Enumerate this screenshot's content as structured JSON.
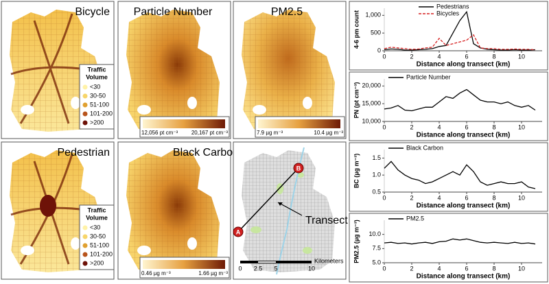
{
  "maps": {
    "panels": [
      {
        "title": "Bicycle"
      },
      {
        "title": "Particle Number",
        "scale": [
          "12,056 pt cm⁻³",
          "20,167 pt cm⁻³"
        ]
      },
      {
        "title": "PM2.5",
        "scale": [
          "7.9 µg m⁻³",
          "10.4 µg m⁻³"
        ]
      },
      {
        "title": "Pedestrian"
      },
      {
        "title": "Black Carbon",
        "scale": [
          "0.46 µg m⁻³",
          "1.66 µg m⁻³"
        ]
      }
    ],
    "traffic_legend": {
      "title": [
        "Traffic",
        "Volume"
      ],
      "items": [
        "<30",
        "30-50",
        "51-100",
        "101-200",
        ">200"
      ],
      "colors": [
        "#fff2a8",
        "#f7d56a",
        "#e0a030",
        "#b8541c",
        "#6e1208"
      ]
    },
    "transect": {
      "start": "A",
      "end": "B",
      "label": "Transect",
      "scale_title": "Kilometers",
      "scale_ticks": [
        "0",
        "2.5",
        "5",
        "10"
      ]
    }
  },
  "chart_data": [
    {
      "type": "line",
      "ylabel": "4-6 pm count",
      "xlabel": "Distance along transect (km)",
      "x": [
        0,
        0.5,
        1,
        1.5,
        2,
        2.5,
        3,
        3.5,
        4,
        4.5,
        5,
        5.5,
        6,
        6.5,
        7,
        7.5,
        8,
        8.5,
        9,
        9.5,
        10,
        10.5,
        11
      ],
      "xlim": [
        0,
        11.5
      ],
      "xticks": [
        0,
        2,
        4,
        6,
        8,
        10
      ],
      "ylim": [
        0,
        1200
      ],
      "yticks": [
        0,
        500,
        {
          "value": 1000,
          "label": "1,000"
        }
      ],
      "legend": "upper left",
      "series": [
        {
          "name": "Pedestrians",
          "color": "#000000",
          "dash": false,
          "values": [
            30,
            50,
            40,
            20,
            20,
            30,
            40,
            60,
            120,
            150,
            500,
            850,
            1100,
            200,
            80,
            40,
            30,
            20,
            20,
            30,
            20,
            20,
            30
          ]
        },
        {
          "name": "Bicycles",
          "color": "#d62020",
          "dash": true,
          "values": [
            60,
            100,
            80,
            60,
            40,
            50,
            80,
            100,
            350,
            150,
            200,
            250,
            300,
            450,
            80,
            60,
            60,
            40,
            40,
            50,
            40,
            40,
            30
          ]
        }
      ]
    },
    {
      "type": "line",
      "ylabel": "PN (pt cm⁻³)",
      "xlabel": "Distance along transect (km)",
      "x": [
        0,
        0.5,
        1,
        1.5,
        2,
        2.5,
        3,
        3.5,
        4,
        4.5,
        5,
        5.5,
        6,
        6.5,
        7,
        7.5,
        8,
        8.5,
        9,
        9.5,
        10,
        10.5,
        11
      ],
      "xlim": [
        0,
        11.5
      ],
      "xticks": [
        0,
        2,
        4,
        6,
        8,
        10
      ],
      "ylim": [
        10000,
        22000
      ],
      "yticks": [
        {
          "value": 10000,
          "label": "10,000"
        },
        {
          "value": 15000,
          "label": "15,000"
        },
        {
          "value": 20000,
          "label": "20,000"
        }
      ],
      "legend": "upper left",
      "series": [
        {
          "name": "Particle Number",
          "color": "#000000",
          "dash": false,
          "values": [
            13500,
            13800,
            14500,
            13200,
            13000,
            13500,
            14000,
            14000,
            15500,
            17000,
            16500,
            18000,
            19000,
            17500,
            16000,
            15500,
            15500,
            15000,
            15500,
            14500,
            14000,
            14500,
            13200
          ]
        }
      ]
    },
    {
      "type": "line",
      "ylabel": "BC (µg m⁻³)",
      "xlabel": "Distance along transect (km)",
      "x": [
        0,
        0.5,
        1,
        1.5,
        2,
        2.5,
        3,
        3.5,
        4,
        4.5,
        5,
        5.5,
        6,
        6.5,
        7,
        7.5,
        8,
        8.5,
        9,
        9.5,
        10,
        10.5,
        11
      ],
      "xlim": [
        0,
        11.5
      ],
      "xticks": [
        0,
        2,
        4,
        6,
        8,
        10
      ],
      "ylim": [
        0.5,
        1.75
      ],
      "yticks": [
        0.5,
        {
          "value": 1,
          "label": "1.0"
        },
        1.5
      ],
      "legend": "upper left",
      "series": [
        {
          "name": "Black Carbon",
          "color": "#000000",
          "dash": false,
          "values": [
            1.2,
            1.4,
            1.15,
            1.0,
            0.9,
            0.85,
            0.75,
            0.8,
            0.9,
            1.0,
            1.1,
            1.0,
            1.3,
            1.1,
            0.8,
            0.7,
            0.75,
            0.8,
            0.75,
            0.75,
            0.8,
            0.65,
            0.6
          ]
        }
      ]
    },
    {
      "type": "line",
      "ylabel": "PM2.5 (µg m⁻³)",
      "xlabel": "Distance along transect (km)",
      "x": [
        0,
        0.5,
        1,
        1.5,
        2,
        2.5,
        3,
        3.5,
        4,
        4.5,
        5,
        5.5,
        6,
        6.5,
        7,
        7.5,
        8,
        8.5,
        9,
        9.5,
        10,
        10.5,
        11
      ],
      "xlim": [
        0,
        11.5
      ],
      "xticks": [
        0,
        2,
        4,
        6,
        8,
        10
      ],
      "ylim": [
        5,
        12.5
      ],
      "yticks": [
        {
          "value": 5,
          "label": "5.0"
        },
        7.5,
        {
          "value": 10,
          "label": "10.0"
        }
      ],
      "legend": "upper left",
      "series": [
        {
          "name": "PM2.5",
          "color": "#000000",
          "dash": false,
          "values": [
            8.5,
            8.6,
            8.4,
            8.5,
            8.3,
            8.5,
            8.6,
            8.4,
            8.7,
            8.8,
            9.2,
            9.0,
            9.2,
            8.9,
            8.6,
            8.5,
            8.6,
            8.5,
            8.4,
            8.6,
            8.4,
            8.5,
            8.3
          ]
        }
      ]
    }
  ]
}
